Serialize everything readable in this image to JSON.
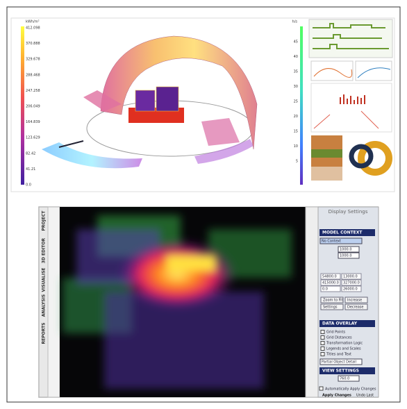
{
  "top_view": {
    "left_scale": {
      "unit": "kWh/m²",
      "labels": [
        "412.098",
        "370.888",
        "329.678",
        "288.468",
        "247.258",
        "206.049",
        "164.839",
        "123.629",
        "82.42",
        "41.21",
        "0.0"
      ]
    },
    "right_scale": {
      "unit": "h/s",
      "labels": [
        "45",
        "40",
        "35",
        "30",
        "25",
        "20",
        "15",
        "10",
        "5"
      ]
    }
  },
  "bottom_view": {
    "tabs": [
      "PROJECT",
      "3D EDITOR",
      "VISUALISE",
      "ANALYSIS",
      "REPORTS"
    ],
    "panel": {
      "title": "Display Settings",
      "model_context": {
        "header": "MODEL CONTEXT",
        "dropdown": "No Context",
        "inputs": [
          "1000.0",
          "1000.0"
        ],
        "grid": [
          "54800.0",
          "13000.0",
          "415000.0",
          "327000.0",
          "0.0",
          "26000.0"
        ],
        "buttons": [
          "Zoom to Fit",
          "Increase",
          "Settings",
          "Decrease"
        ]
      },
      "data_overlay": {
        "header": "DATA OVERLAY",
        "options": [
          "Grid Points",
          "Grid Distances",
          "Transformation Logic",
          "Legends and Scales",
          "Titles and Text"
        ],
        "dropdown": "Partial Object Detail"
      },
      "view_settings": {
        "header": "VIEW SETTINGS",
        "value": "760.0"
      },
      "auto_apply": "Automatically Apply Changes",
      "actions": [
        "Apply Changes",
        "Undo Last"
      ]
    }
  }
}
